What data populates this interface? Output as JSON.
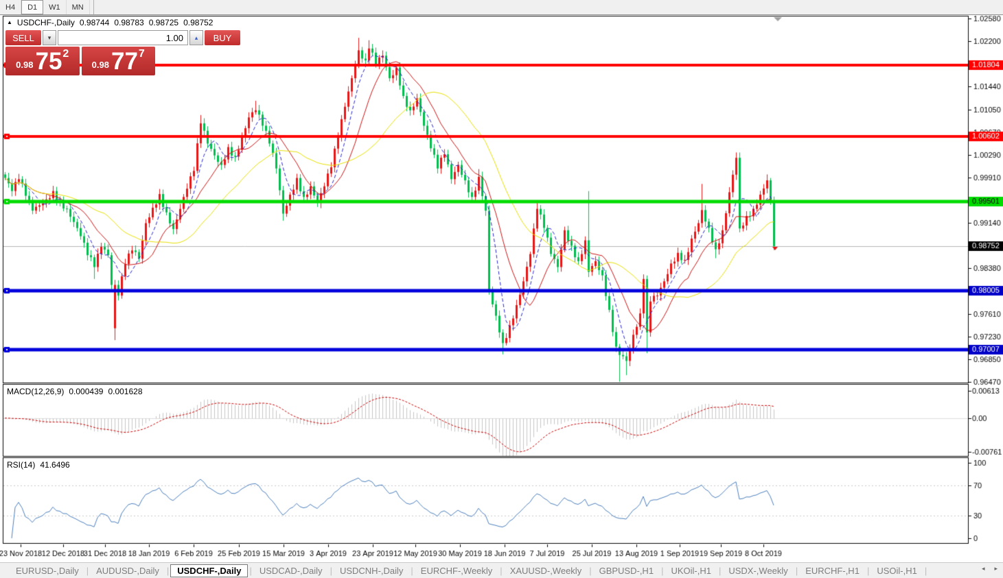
{
  "toolbar": {
    "timeframes": [
      {
        "label": "H4",
        "active": false
      },
      {
        "label": "D1",
        "active": true
      },
      {
        "label": "W1",
        "active": false
      },
      {
        "label": "MN",
        "active": false
      }
    ]
  },
  "chart_header": {
    "collapse_icon": "▲",
    "symbol": "USDCHF-,Daily",
    "ohlc": {
      "open": "0.98744",
      "high": "0.98783",
      "low": "0.98725",
      "close": "0.98752"
    }
  },
  "trade_panel": {
    "sell_label": "SELL",
    "buy_label": "BUY",
    "volume": "1.00",
    "spin_down_icon": "▾",
    "spin_up_icon": "▴",
    "sell_price": {
      "prefix": "0.98",
      "main": "75",
      "sup": "2"
    },
    "buy_price": {
      "prefix": "0.98",
      "main": "77",
      "sup": "7"
    }
  },
  "indicator_labels": {
    "macd_name": "MACD(12,26,9)",
    "macd_main_value": "0.000439",
    "macd_signal_value": "0.001628",
    "rsi_name": "RSI(14)",
    "rsi_value": "41.6496"
  },
  "tabs": {
    "items": [
      "EURUSD-,Daily",
      "AUDUSD-,Daily",
      "USDCHF-,Daily",
      "USDCAD-,Daily",
      "USDCNH-,Daily",
      "EURCHF-,Weekly",
      "XAUUSD-,Weekly",
      "GBPUSD-,H1",
      "UKOil-,H1",
      "USDX-,Weekly",
      "EURCHF-,H1",
      "USOil-,H1"
    ],
    "selected_index": 2,
    "scroll_left_icon": "◂",
    "scroll_right_icon": "▸"
  },
  "colors": {
    "up_candle": "#e81414",
    "down_candle": "#00be4e",
    "level_red": "#ff0000",
    "level_green": "#00dc00",
    "level_blue": "#0000dc",
    "ma_fast": "#2222cc",
    "ma_mid": "#cc1111",
    "ma_slow": "#e6df00",
    "macd_hist": "#c4c4c4",
    "macd_signal": "#cc0000",
    "rsi_line": "#4a7ebb",
    "current_price_line": "#b4b4b4",
    "axis_text": "#000000",
    "marker_gray": "#a0a0a0",
    "accent_red": "#cf3434"
  },
  "chart_data": {
    "type": "candlestick",
    "symbol": "USDCHF",
    "timeframe": "Daily",
    "main": {
      "ymax": 1.0262,
      "ymin": 0.96455
    },
    "current_price": 0.98752,
    "levels": [
      {
        "price": 1.01804,
        "color": "#ff0000",
        "width": 4
      },
      {
        "price": 1.00602,
        "color": "#ff0000",
        "width": 4
      },
      {
        "price": 0.99501,
        "color": "#00dc00",
        "width": 5
      },
      {
        "price": 0.98005,
        "color": "#0000dc",
        "width": 5
      },
      {
        "price": 0.97007,
        "color": "#0000dc",
        "width": 5
      }
    ],
    "y_ticks": [
      {
        "p": 1.0258,
        "label": "1.02580"
      },
      {
        "p": 1.022,
        "label": "1.02200"
      },
      {
        "p": 1.0144,
        "label": "1.01440"
      },
      {
        "p": 1.0105,
        "label": "1.01050"
      },
      {
        "p": 1.0067,
        "label": "1.00670"
      },
      {
        "p": 1.0029,
        "label": "1.00290"
      },
      {
        "p": 0.9991,
        "label": "0.99910"
      },
      {
        "p": 0.9914,
        "label": "0.99140"
      },
      {
        "p": 0.9838,
        "label": "0.98380"
      },
      {
        "p": 0.9761,
        "label": "0.97610"
      },
      {
        "p": 0.9723,
        "label": "0.97230"
      },
      {
        "p": 0.9685,
        "label": "0.96850"
      },
      {
        "p": 0.9647,
        "label": "0.96470"
      }
    ],
    "tags": [
      {
        "price": 1.01804,
        "label": "1.01804",
        "bg": "#ff0000",
        "fg": "#ffffff"
      },
      {
        "price": 1.00602,
        "label": "1.00602",
        "bg": "#ff0000",
        "fg": "#ffffff"
      },
      {
        "price": 0.99501,
        "label": "0.99501",
        "bg": "#00dc00",
        "fg": "#000000"
      },
      {
        "price": 0.98752,
        "label": "0.98752",
        "bg": "#000000",
        "fg": "#ffffff"
      },
      {
        "price": 0.98005,
        "label": "0.98005",
        "bg": "#0000c8",
        "fg": "#ffffff"
      },
      {
        "price": 0.97007,
        "label": "0.97007",
        "bg": "#0000c8",
        "fg": "#ffffff"
      }
    ],
    "x_ticks": [
      {
        "x": 30,
        "label": "23 Nov 2018"
      },
      {
        "x": 92,
        "label": "12 Dec 2018"
      },
      {
        "x": 153,
        "label": "31 Dec 2018"
      },
      {
        "x": 217,
        "label": "18 Jan 2019"
      },
      {
        "x": 282,
        "label": "6 Feb 2019"
      },
      {
        "x": 348,
        "label": "25 Feb 2019"
      },
      {
        "x": 413,
        "label": "15 Mar 2019"
      },
      {
        "x": 478,
        "label": "3 Apr 2019"
      },
      {
        "x": 543,
        "label": "23 Apr 2019"
      },
      {
        "x": 605,
        "label": "12 May 2019"
      },
      {
        "x": 670,
        "label": "30 May 2019"
      },
      {
        "x": 735,
        "label": "18 Jun 2019"
      },
      {
        "x": 797,
        "label": "7 Jul 2019"
      },
      {
        "x": 862,
        "label": "25 Jul 2019"
      },
      {
        "x": 927,
        "label": "13 Aug 2019"
      },
      {
        "x": 990,
        "label": "1 Sep 2019"
      },
      {
        "x": 1050,
        "label": "19 Sep 2019"
      },
      {
        "x": 1112,
        "label": "8 Oct 2019"
      }
    ],
    "bars": {
      "count": 225,
      "x_start": 7,
      "spacing": 5,
      "body_width": 3,
      "anchors": [
        [
          0,
          0.999
        ],
        [
          2,
          0.9968
        ],
        [
          4,
          0.9988
        ],
        [
          6,
          0.996
        ],
        [
          8,
          0.9935
        ],
        [
          10,
          0.9944
        ],
        [
          12,
          0.9954
        ],
        [
          14,
          0.9968
        ],
        [
          16,
          0.995
        ],
        [
          18,
          0.9938
        ],
        [
          20,
          0.9916
        ],
        [
          22,
          0.9892
        ],
        [
          24,
          0.986
        ],
        [
          26,
          0.984,
          null,
          0.982
        ],
        [
          28,
          0.9874
        ],
        [
          30,
          0.986
        ],
        [
          31,
          0.981
        ],
        [
          32,
          0.981,
          null,
          0.9717,
          0.9737
        ],
        [
          33,
          0.9792
        ],
        [
          35,
          0.9845
        ],
        [
          37,
          0.9868
        ],
        [
          39,
          0.9854
        ],
        [
          41,
          0.9914
        ],
        [
          43,
          0.994
        ],
        [
          45,
          0.9963
        ],
        [
          47,
          0.9932
        ],
        [
          49,
          0.9904
        ],
        [
          51,
          0.9938
        ],
        [
          53,
          0.9972
        ],
        [
          55,
          1.0002
        ],
        [
          57,
          1.0082,
          1.0096
        ],
        [
          59,
          1.0048
        ],
        [
          61,
          1.0028
        ],
        [
          63,
          1.0012
        ],
        [
          65,
          1.0042
        ],
        [
          67,
          1.0026
        ],
        [
          69,
          1.0058
        ],
        [
          71,
          1.0092
        ],
        [
          73,
          1.0104,
          1.012
        ],
        [
          75,
          1.0078
        ],
        [
          77,
          1.0048
        ],
        [
          79,
          1.0006
        ],
        [
          81,
          0.993,
          null,
          0.9918
        ],
        [
          83,
          0.9962
        ],
        [
          85,
          0.999
        ],
        [
          87,
          0.9958
        ],
        [
          89,
          0.9976
        ],
        [
          91,
          0.9948
        ],
        [
          93,
          0.9976
        ],
        [
          95,
          1.0008
        ],
        [
          97,
          1.0058
        ],
        [
          99,
          1.011
        ],
        [
          101,
          1.0158
        ],
        [
          103,
          1.0205,
          1.0226
        ],
        [
          105,
          1.0188
        ],
        [
          106,
          1.0208,
          1.0222
        ],
        [
          108,
          1.0182
        ],
        [
          110,
          1.0196
        ],
        [
          112,
          1.0158
        ],
        [
          114,
          1.0176
        ],
        [
          116,
          1.0128
        ],
        [
          118,
          1.0104
        ],
        [
          120,
          1.0124
        ],
        [
          122,
          1.0078
        ],
        [
          124,
          1.004
        ],
        [
          126,
          1.0006
        ],
        [
          128,
          1.003
        ],
        [
          130,
          0.9988
        ],
        [
          132,
          1.0012
        ],
        [
          134,
          0.9986
        ],
        [
          136,
          0.9958
        ],
        [
          138,
          0.9992,
          1.0005
        ],
        [
          140,
          0.9935
        ],
        [
          141,
          0.98
        ],
        [
          143,
          0.9758
        ],
        [
          145,
          0.9712,
          null,
          0.9693
        ],
        [
          147,
          0.9742
        ],
        [
          149,
          0.9776
        ],
        [
          151,
          0.9816
        ],
        [
          153,
          0.9862
        ],
        [
          155,
          0.9938,
          0.9948
        ],
        [
          157,
          0.9906
        ],
        [
          159,
          0.9862
        ],
        [
          161,
          0.984
        ],
        [
          163,
          0.9902
        ],
        [
          165,
          0.9876
        ],
        [
          167,
          0.985
        ],
        [
          169,
          0.9885
        ],
        [
          170,
          0.9832,
          0.9968
        ],
        [
          172,
          0.985
        ],
        [
          174,
          0.9826
        ],
        [
          176,
          0.9768
        ],
        [
          178,
          0.9706
        ],
        [
          179,
          0.9692,
          null,
          0.9647
        ],
        [
          181,
          0.9682,
          null,
          0.9658
        ],
        [
          183,
          0.9726
        ],
        [
          185,
          0.9762
        ],
        [
          186,
          0.982
        ],
        [
          187,
          0.973,
          null,
          0.9695
        ],
        [
          188,
          0.9782
        ],
        [
          190,
          0.9792
        ],
        [
          192,
          0.9816
        ],
        [
          194,
          0.9846
        ],
        [
          196,
          0.9864
        ],
        [
          198,
          0.9852
        ],
        [
          200,
          0.9888
        ],
        [
          202,
          0.9914
        ],
        [
          203,
          0.9936,
          0.998
        ],
        [
          205,
          0.9906
        ],
        [
          207,
          0.987,
          null,
          0.9855
        ],
        [
          209,
          0.9902
        ],
        [
          211,
          0.9966
        ],
        [
          213,
          1.0024,
          1.0033
        ],
        [
          214,
          0.9905
        ],
        [
          216,
          0.9926
        ],
        [
          218,
          0.9938
        ],
        [
          220,
          0.9962
        ],
        [
          222,
          0.9986,
          0.9996
        ],
        [
          223,
          0.995
        ],
        [
          224,
          0.98752
        ]
      ]
    },
    "moving_averages": [
      {
        "period": 6,
        "color": "#2222cc",
        "dash": [
          5,
          3
        ]
      },
      {
        "period": 13,
        "color": "#cc1111",
        "dash": []
      },
      {
        "period": 30,
        "color": "#e6df00",
        "dash": []
      }
    ],
    "macd": {
      "params": [
        12,
        26,
        9
      ],
      "displayed_main": 0.000439,
      "displayed_signal": 0.001628,
      "range": [
        -0.0085,
        0.0075
      ],
      "ticks": [
        {
          "v": 0.00613,
          "label": "0.00613"
        },
        {
          "v": 0,
          "label": "0.00"
        },
        {
          "v": -0.00761,
          "label": "-0.00761"
        }
      ]
    },
    "rsi": {
      "period": 14,
      "displayed_value": 41.6496,
      "levels": [
        70,
        30
      ],
      "ticks": [
        {
          "v": 100,
          "label": "100"
        },
        {
          "v": 70,
          "label": "70"
        },
        {
          "v": 30,
          "label": "30"
        },
        {
          "v": 0,
          "label": "0"
        }
      ]
    }
  }
}
